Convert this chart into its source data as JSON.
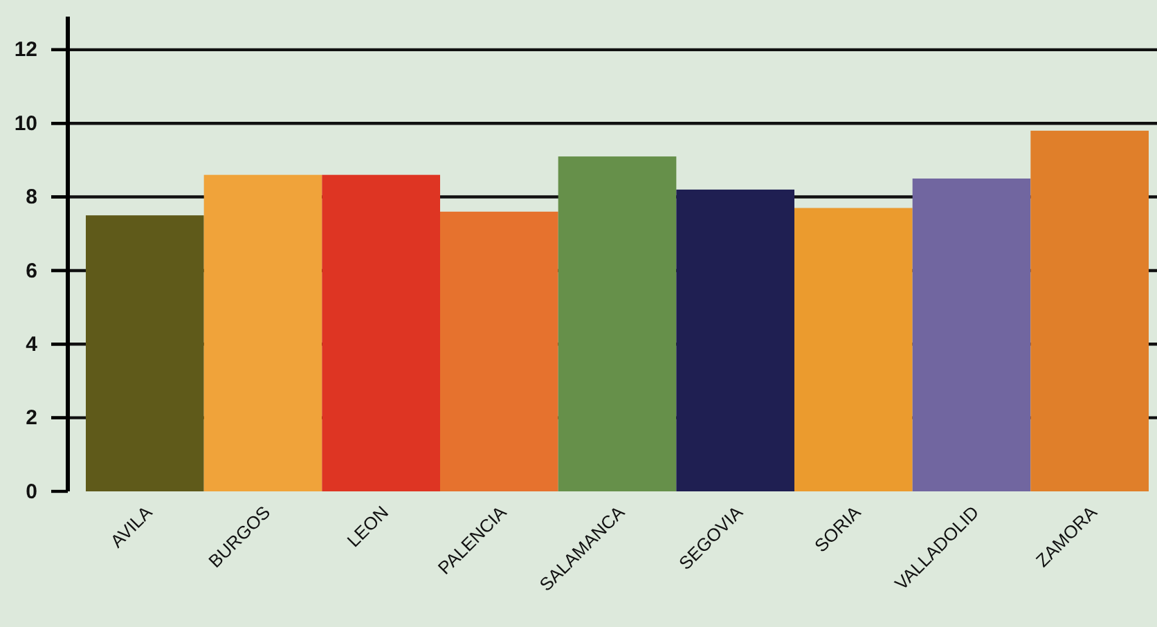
{
  "chart_data": {
    "type": "bar",
    "categories": [
      "AVILA",
      "BURGOS",
      "LEON",
      "PALENCIA",
      "SALAMANCA",
      "SEGOVIA",
      "SORIA",
      "VALLADOLID",
      "ZAMORA"
    ],
    "values": [
      7.5,
      8.6,
      8.6,
      7.6,
      9.1,
      8.2,
      7.7,
      8.5,
      9.8
    ],
    "colors": [
      "#5f5a1a",
      "#f0a33a",
      "#de3523",
      "#e6722e",
      "#66904a",
      "#1f1f52",
      "#eb9b2e",
      "#7166a0",
      "#e07f2a"
    ],
    "ylim": [
      0,
      12.9
    ],
    "yticks": [
      0,
      2,
      4,
      6,
      8,
      10,
      12
    ],
    "grid": "y"
  }
}
